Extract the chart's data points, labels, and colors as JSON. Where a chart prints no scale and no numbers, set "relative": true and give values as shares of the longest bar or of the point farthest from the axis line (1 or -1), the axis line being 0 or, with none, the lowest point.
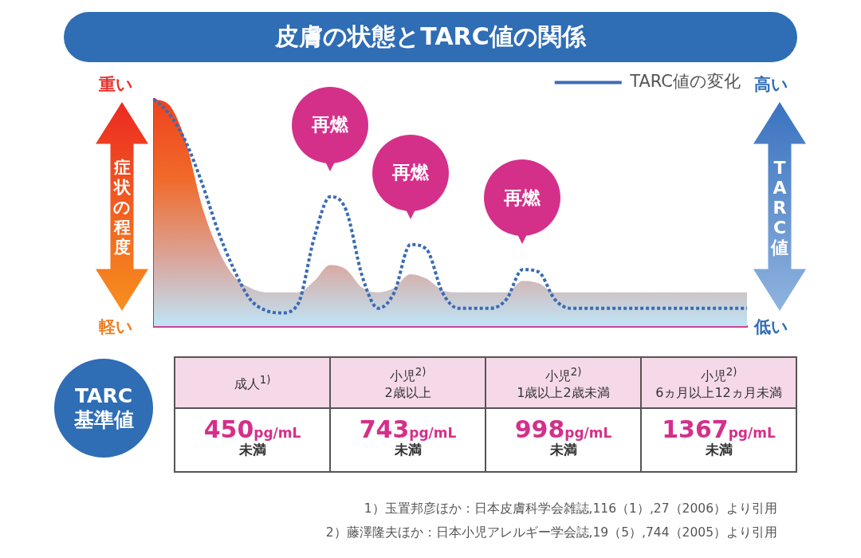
{
  "chart_data": {
    "type": "area",
    "title": "皮膚の状態とTARC値の関係",
    "ylabel": "症状の程度",
    "y2label": "TARC値",
    "relative": true,
    "legend": "top right",
    "grid": false,
    "marker": "none",
    "categories": [
      null,
      null,
      null,
      null,
      null,
      null,
      null,
      null,
      null,
      null,
      null,
      null,
      null,
      null,
      null,
      null,
      null,
      null,
      null,
      null,
      null,
      null,
      null,
      null,
      null,
      null,
      null,
      null,
      null,
      null,
      null,
      null,
      null,
      null,
      null,
      null,
      null,
      null
    ],
    "series": [
      {
        "color": "#f06a2a",
        "values": [
          1,
          0.97,
          0.81,
          0.53,
          0.34,
          0.22,
          0.17,
          0.15,
          0.15,
          0.15,
          0.2,
          0.27,
          0.25,
          0.17,
          0.15,
          0.17,
          0.23,
          0.21,
          0.16,
          0.15,
          0.15,
          0.15,
          0.15,
          0.2,
          0.19,
          0.15,
          0.15,
          0.15,
          0.15,
          0.15,
          0.15,
          0.15,
          0.15,
          0.15,
          0.15,
          0.15,
          0.15,
          0.15
        ]
      },
      {
        "type": "line",
        "name": "TARC値の変化",
        "color": "#3a6bb5",
        "line_style": "dotted",
        "values": [
          1,
          0.93,
          0.81,
          0.63,
          0.42,
          0.25,
          0.12,
          0.07,
          0.06,
          0.1,
          0.39,
          0.57,
          0.51,
          0.22,
          0.08,
          0.15,
          0.36,
          0.34,
          0.15,
          0.08,
          0.08,
          0.08,
          0.12,
          0.25,
          0.24,
          0.12,
          0.08,
          0.08,
          0.08,
          0.08,
          0.08,
          0.08,
          0.08,
          0.08,
          0.08,
          0.08,
          0.08,
          0.08
        ]
      }
    ],
    "annotations": [
      "再燃",
      "再燃",
      "再燃",
      "重い",
      "軽い",
      "高い",
      "低い",
      "TARC基準値",
      "成人$^{1)}$",
      "小児$^{2)}$\n2歳以上",
      "小児$^{2)}$\n1歳以上2歳未満",
      "小児$^{2)}$\n6ヵ月以上12ヵ月未満",
      "450pg/mL\n未満",
      "743pg/mL\n未満",
      "998pg/mL\n未満",
      "1367pg/mL\n未満",
      "1）玉置邦彦ほか：日本皮膚科学会雑誌,116（1）,27（2006）より引用",
      "2）藤澤隆夫ほか：日本小児アレルギー学会誌,19（5）,744（2005）より引用"
    ]
  }
}
